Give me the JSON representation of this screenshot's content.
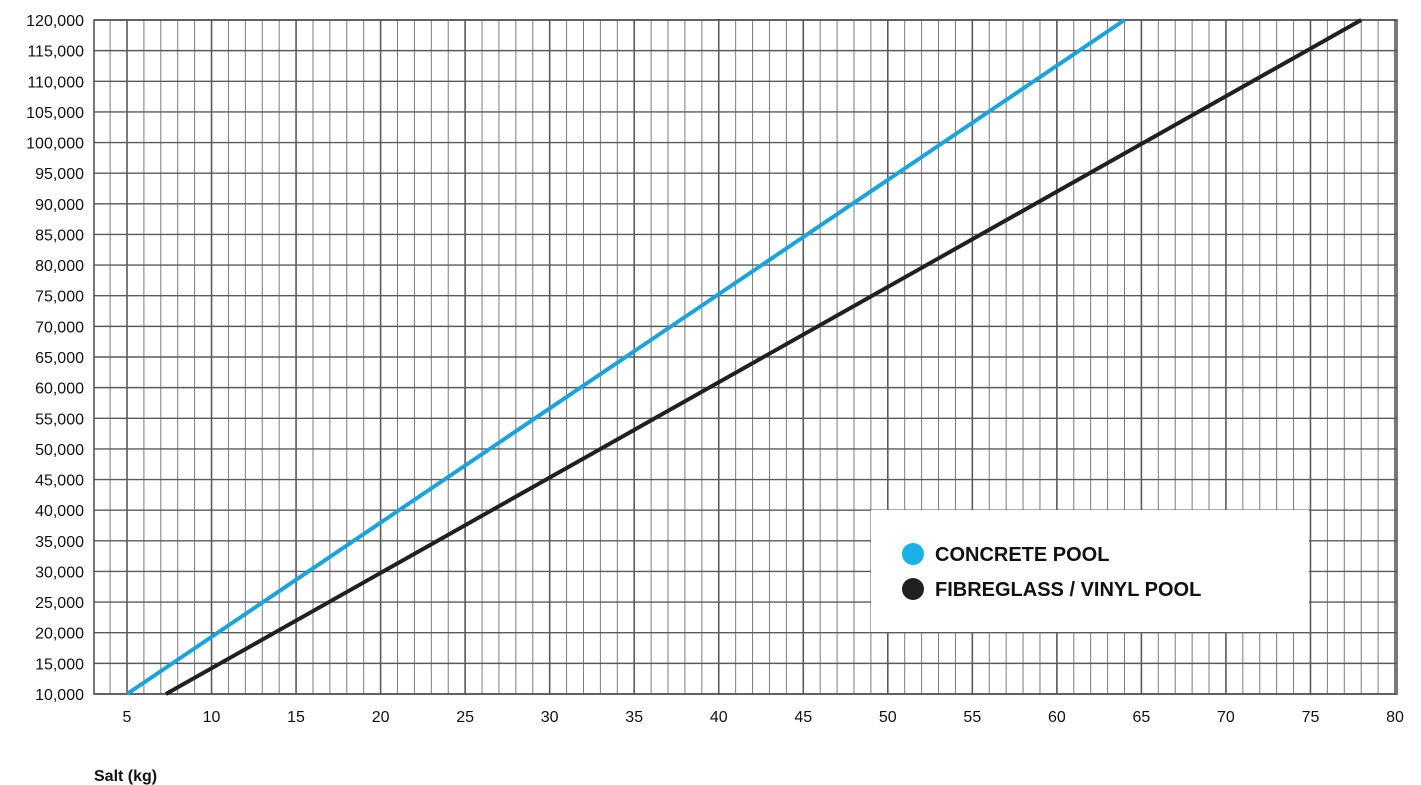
{
  "chart_data": {
    "type": "line",
    "xlabel": "Salt (kg)",
    "ylabel": "",
    "xlim": [
      3,
      80
    ],
    "ylim": [
      10000,
      120000
    ],
    "x_ticks": [
      5,
      10,
      15,
      20,
      25,
      30,
      35,
      40,
      45,
      50,
      55,
      60,
      65,
      70,
      75,
      80
    ],
    "x_tick_labels": [
      "5",
      "10",
      "15",
      "20",
      "25",
      "30",
      "35",
      "40",
      "45",
      "50",
      "55",
      "60",
      "65",
      "70",
      "75",
      "80"
    ],
    "y_ticks": [
      10000,
      15000,
      20000,
      25000,
      30000,
      35000,
      40000,
      45000,
      50000,
      55000,
      60000,
      65000,
      70000,
      75000,
      80000,
      85000,
      90000,
      95000,
      100000,
      105000,
      110000,
      115000,
      120000
    ],
    "y_tick_labels": [
      "10,000",
      "15,000",
      "20,000",
      "25,000",
      "30,000",
      "35,000",
      "40,000",
      "45,000",
      "50,000",
      "55,000",
      "60,000",
      "65,000",
      "70,000",
      "75,000",
      "80,000",
      "85,000",
      "90,000",
      "95,000",
      "100,000",
      "105,000",
      "110,000",
      "115,000",
      "120,000"
    ],
    "grid": true,
    "minor_x_step": 1,
    "legend_position": "bottom-right",
    "series": [
      {
        "name": "CONCRETE POOL",
        "color": "#1aa3dc",
        "marker_color": "#1ab0ea",
        "x": [
          5,
          64
        ],
        "y": [
          10000,
          120000
        ]
      },
      {
        "name": "FIBREGLASS / VINYL POOL",
        "color": "#231f20",
        "marker_color": "#231f20",
        "x": [
          7.3,
          78
        ],
        "y": [
          10000,
          120000
        ]
      }
    ]
  }
}
